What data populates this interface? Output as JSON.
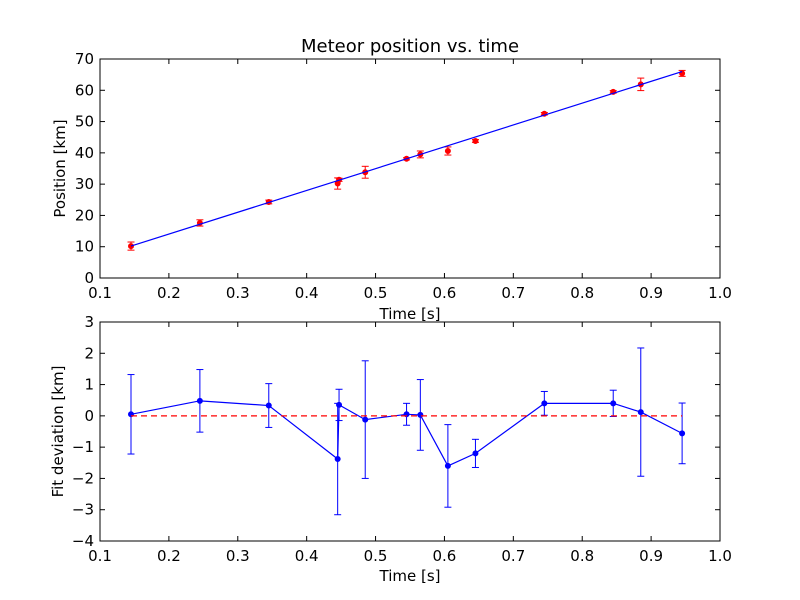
{
  "chart_data": [
    {
      "type": "scatter",
      "title": "Meteor position vs. time",
      "xlabel": "Time [s]",
      "ylabel": "Position [km]",
      "xlim": [
        0.1,
        1.0
      ],
      "ylim": [
        0,
        70
      ],
      "xticks": [
        "0.1",
        "0.2",
        "0.3",
        "0.4",
        "0.5",
        "0.6",
        "0.7",
        "0.8",
        "0.9",
        "1.0"
      ],
      "yticks": [
        "0",
        "10",
        "20",
        "30",
        "40",
        "50",
        "60",
        "70"
      ],
      "grid": false,
      "series": [
        {
          "kind": "points-with-errorbars",
          "color": "#ff0000",
          "x": [
            0.145,
            0.245,
            0.345,
            0.445,
            0.447,
            0.485,
            0.545,
            0.565,
            0.605,
            0.645,
            0.745,
            0.845,
            0.885,
            0.945
          ],
          "y": [
            10.2,
            17.6,
            24.3,
            30.2,
            31.4,
            33.8,
            38.1,
            39.5,
            40.6,
            43.8,
            52.5,
            59.5,
            61.9,
            65.4
          ],
          "yerr": [
            1.3,
            1.0,
            0.6,
            1.8,
            0.5,
            1.9,
            0.35,
            1.1,
            1.3,
            0.45,
            0.4,
            0.4,
            2.0,
            0.95
          ]
        },
        {
          "kind": "line",
          "color": "#0000ff",
          "x": [
            0.145,
            0.945
          ],
          "y": [
            10.2,
            66.0
          ]
        }
      ]
    },
    {
      "type": "line",
      "title": "",
      "xlabel": "Time [s]",
      "ylabel": "Fit deviation [km]",
      "xlim": [
        0.1,
        1.0
      ],
      "ylim": [
        -4,
        3
      ],
      "xticks": [
        "0.1",
        "0.2",
        "0.3",
        "0.4",
        "0.5",
        "0.6",
        "0.7",
        "0.8",
        "0.9",
        "1.0"
      ],
      "yticks": [
        "−4",
        "−3",
        "−2",
        "−1",
        "0",
        "1",
        "2",
        "3"
      ],
      "grid": false,
      "series": [
        {
          "kind": "line-with-errorbars",
          "color": "#0000ff",
          "x": [
            0.145,
            0.245,
            0.345,
            0.445,
            0.447,
            0.485,
            0.545,
            0.565,
            0.605,
            0.645,
            0.745,
            0.845,
            0.885,
            0.945
          ],
          "y": [
            0.05,
            0.48,
            0.33,
            -1.38,
            0.35,
            -0.12,
            0.05,
            0.03,
            -1.6,
            -1.2,
            0.4,
            0.4,
            0.12,
            -0.56
          ],
          "yerr": [
            1.27,
            1.0,
            0.7,
            1.78,
            0.5,
            1.88,
            0.35,
            1.13,
            1.32,
            0.45,
            0.38,
            0.42,
            2.05,
            0.97
          ]
        },
        {
          "kind": "dashed-reference",
          "color": "#ff0000",
          "x": [
            0.145,
            0.945
          ],
          "y": [
            0,
            0
          ]
        }
      ]
    }
  ]
}
